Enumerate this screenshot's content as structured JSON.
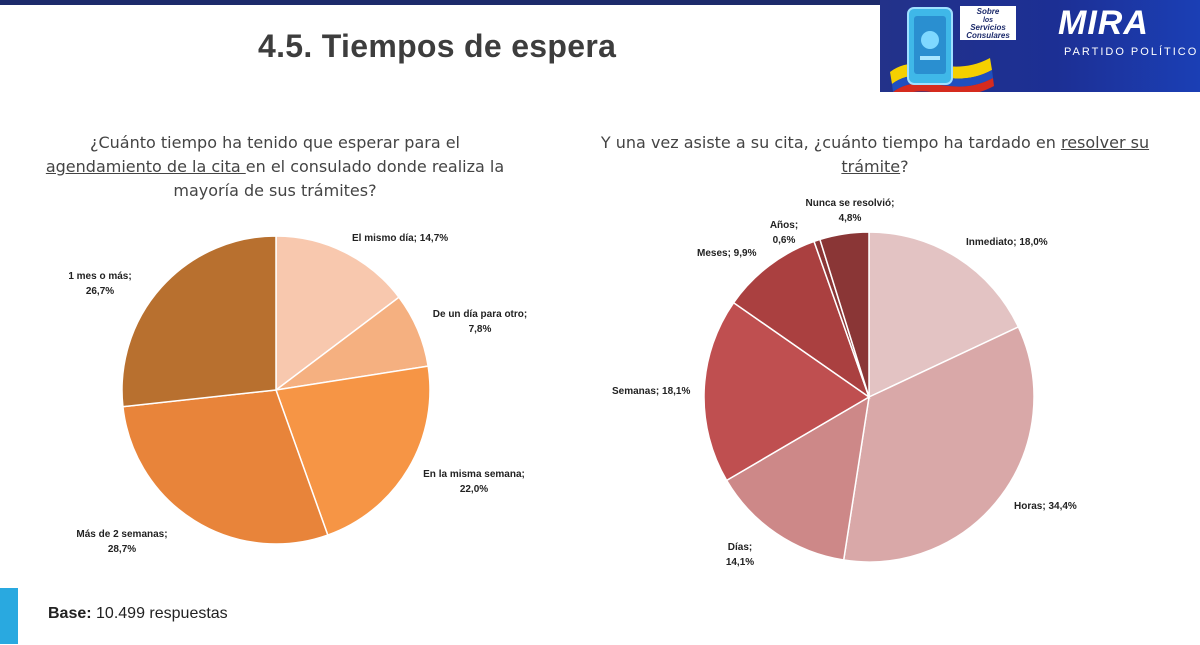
{
  "slide": {
    "title": "4.5. Tiempos de espera",
    "brand": {
      "name": "MIRA",
      "subtitle": "PARTIDO POLÍTICO",
      "badge_lines": [
        "Sobre",
        "los",
        "Servicios",
        "Consulares"
      ],
      "colors": {
        "navy": "#1d2b6b",
        "brand_blue": "#1c2f94"
      }
    },
    "base_label": "Base:",
    "base_value": "10.499 respuestas"
  },
  "questions": {
    "q1": {
      "part1": "¿Cuánto tiempo ha tenido que esperar para el ",
      "underlined": "agendamiento de la cita ",
      "part2": "en el consulado donde realiza la mayoría de sus trámites?"
    },
    "q2": {
      "part1": "Y una vez asiste a su cita, ¿cuánto tiempo ha tardado en ",
      "underlined": "resolver su trámite",
      "part2": "?"
    }
  },
  "chart_data": [
    {
      "type": "pie",
      "title": "¿Cuánto tiempo ha tenido que esperar para el agendamiento de la cita en el consulado donde realiza la mayoría de sus trámites?",
      "unit": "%",
      "start": "12 o'clock",
      "direction": "clockwise",
      "slices": [
        {
          "label": "El mismo día; 14,7%",
          "value": 14.7,
          "color": "#f8c8ae"
        },
        {
          "label": "De un día para otro; 7,8%",
          "value": 7.8,
          "color": "#f5b080"
        },
        {
          "label": "En la misma semana; 22,0%",
          "value": 22.0,
          "color": "#f69545"
        },
        {
          "label": "Más de 2 semanas; 28,7%",
          "value": 28.7,
          "color": "#e8843a"
        },
        {
          "label": "1 mes o más; 26,7%",
          "value": 26.7,
          "color": "#b8702f"
        }
      ]
    },
    {
      "type": "pie",
      "title": "Y una vez asiste a su cita, ¿cuánto tiempo ha tardado en resolver su trámite?",
      "unit": "%",
      "start": "12 o'clock",
      "direction": "clockwise",
      "slices": [
        {
          "label": "Inmediato; 18,0%",
          "value": 18.0,
          "color": "#e3c3c3"
        },
        {
          "label": "Horas; 34,4%",
          "value": 34.4,
          "color": "#d9a8a8"
        },
        {
          "label": "Días; 14,1%",
          "value": 14.1,
          "color": "#cd8888"
        },
        {
          "label": "Semanas; 18,1%",
          "value": 18.1,
          "color": "#bf4f50"
        },
        {
          "label": "Meses; 9,9%",
          "value": 9.9,
          "color": "#aa4040"
        },
        {
          "label": "Años; 0,6%",
          "value": 0.6,
          "color": "#8b3535"
        },
        {
          "label": "Nunca se resolvió; 4,8%",
          "value": 4.8,
          "color": "#8a3636"
        }
      ]
    }
  ]
}
